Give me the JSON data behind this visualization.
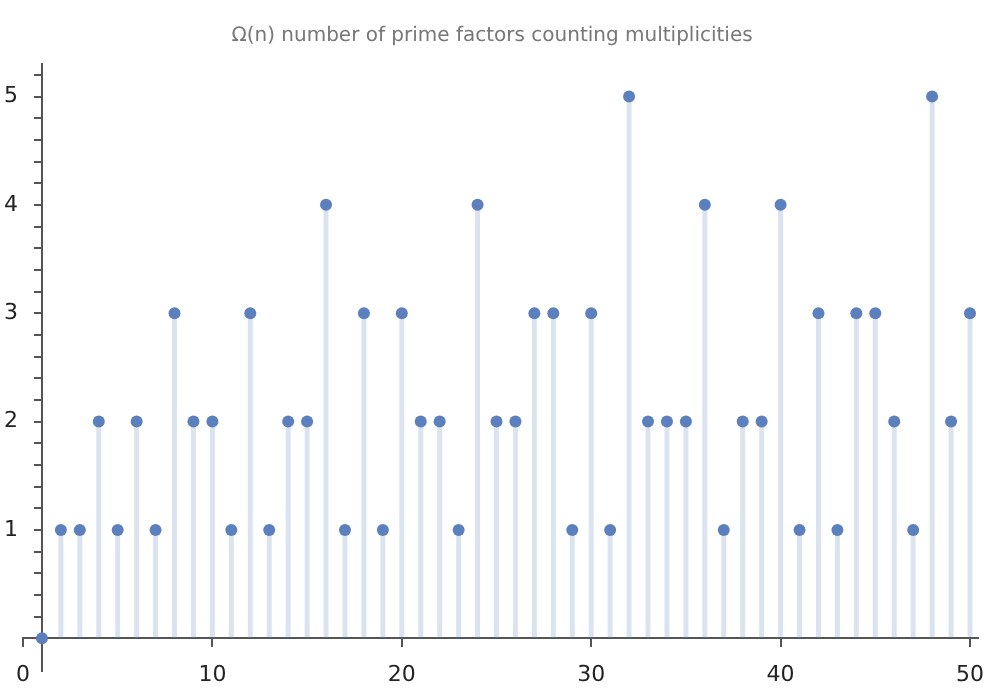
{
  "chart_data": {
    "type": "lollipop",
    "title": "Ω(n) number of prime factors counting multiplicities",
    "x": [
      1,
      2,
      3,
      4,
      5,
      6,
      7,
      8,
      9,
      10,
      11,
      12,
      13,
      14,
      15,
      16,
      17,
      18,
      19,
      20,
      21,
      22,
      23,
      24,
      25,
      26,
      27,
      28,
      29,
      30,
      31,
      32,
      33,
      34,
      35,
      36,
      37,
      38,
      39,
      40,
      41,
      42,
      43,
      44,
      45,
      46,
      47,
      48,
      49,
      50
    ],
    "values": [
      0,
      1,
      1,
      2,
      1,
      2,
      1,
      3,
      2,
      2,
      1,
      3,
      1,
      2,
      2,
      4,
      1,
      3,
      1,
      3,
      2,
      2,
      1,
      4,
      2,
      2,
      3,
      3,
      1,
      3,
      1,
      5,
      2,
      2,
      2,
      4,
      1,
      2,
      2,
      4,
      1,
      3,
      1,
      3,
      3,
      2,
      1,
      5,
      2,
      3
    ],
    "color": "#5b80bd",
    "marker": "circle",
    "grid": false,
    "legend": false,
    "xlim": [
      0,
      50.4
    ],
    "xticks": [
      0,
      10,
      20,
      30,
      40,
      50
    ],
    "ylim": [
      -0.3,
      5.3
    ],
    "yticks": [
      {
        "value": 0.2,
        "label": null
      },
      {
        "value": 0.4,
        "label": null
      },
      {
        "value": 0.6,
        "label": null
      },
      {
        "value": 0.8,
        "label": null
      },
      1,
      {
        "value": 1.2,
        "label": null
      },
      {
        "value": 1.4,
        "label": null
      },
      {
        "value": 1.6,
        "label": null
      },
      {
        "value": 1.8,
        "label": null
      },
      2,
      {
        "value": 2.2,
        "label": null
      },
      {
        "value": 2.4,
        "label": null
      },
      {
        "value": 2.6,
        "label": null
      },
      {
        "value": 2.8,
        "label": null
      },
      3,
      {
        "value": 3.2,
        "label": null
      },
      {
        "value": 3.4,
        "label": null
      },
      {
        "value": 3.6,
        "label": null
      },
      {
        "value": 3.8,
        "label": null
      },
      4,
      {
        "value": 4.2,
        "label": null
      },
      {
        "value": 4.4,
        "label": null
      },
      {
        "value": 4.6,
        "label": null
      },
      {
        "value": 4.8,
        "label": null
      },
      5,
      {
        "value": 5.2,
        "label": null
      }
    ]
  }
}
